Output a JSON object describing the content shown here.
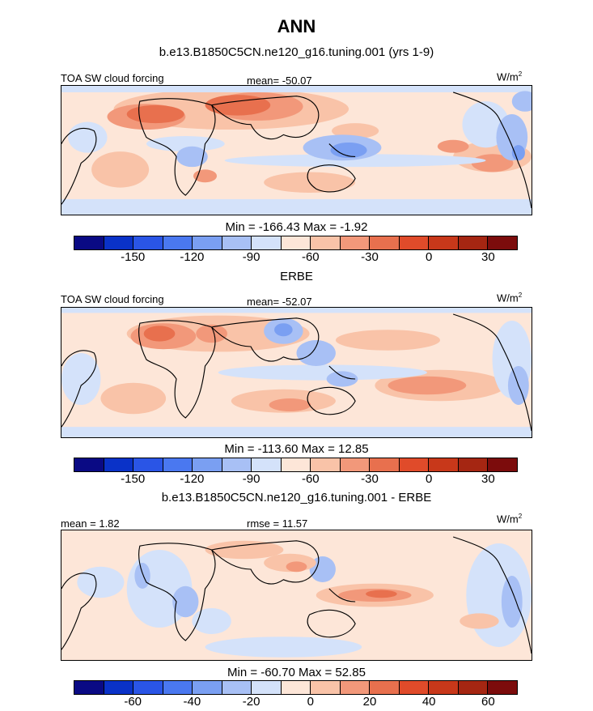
{
  "title": "ANN",
  "colors": [
    "#0a0a84",
    "#0a32c8",
    "#2a55e6",
    "#4a78f0",
    "#7a9ff2",
    "#a8c0f5",
    "#d4e2fa",
    "#fde6d8",
    "#f9c3a8",
    "#f2987a",
    "#e8704e",
    "#e04b2a",
    "#c8381a",
    "#a52612",
    "#7c0c0c"
  ],
  "coastline_color": "#000000",
  "panels": [
    {
      "title": "b.e13.B1850C5CN.ne120_g16.tuning.001 (yrs 1-9)",
      "left_label": "TOA SW cloud forcing",
      "center_label": "mean= -50.07",
      "units_base": "W/m",
      "units_exp": "2",
      "minmax": "Min = -166.43 Max = -1.92",
      "ticks": [
        "-150",
        "-120",
        "-90",
        "-60",
        "-30",
        "0",
        "30"
      ]
    },
    {
      "title": "ERBE",
      "left_label": "TOA SW cloud forcing",
      "center_label": "mean= -52.07",
      "units_base": "W/m",
      "units_exp": "2",
      "minmax": "Min = -113.60 Max = 12.85",
      "ticks": [
        "-150",
        "-120",
        "-90",
        "-60",
        "-30",
        "0",
        "30"
      ]
    },
    {
      "title": "b.e13.B1850C5CN.ne120_g16.tuning.001 - ERBE",
      "left_label": "mean = 1.82",
      "center_label": "rmse = 11.57",
      "units_base": "W/m",
      "units_exp": "2",
      "minmax": "Min = -60.70 Max = 52.85",
      "ticks": [
        "-60",
        "-40",
        "-20",
        "0",
        "20",
        "40",
        "60"
      ]
    }
  ]
}
